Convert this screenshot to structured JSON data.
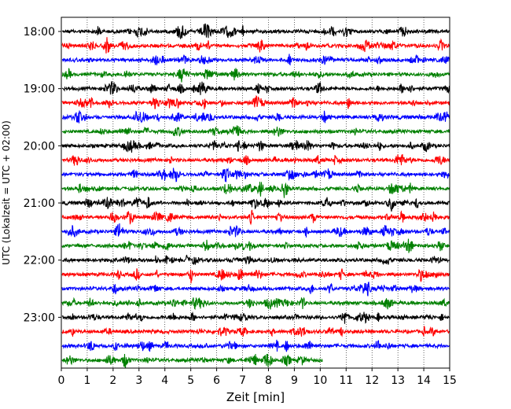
{
  "chart_data": {
    "type": "line",
    "subtype": "helicorder",
    "xlabel": "Zeit  [min]",
    "ylabel": "UTC (Lokalzeit = UTC + 02:00)",
    "x_ticks": [
      0,
      1,
      2,
      3,
      4,
      5,
      6,
      7,
      8,
      9,
      10,
      11,
      12,
      13,
      14,
      15
    ],
    "xlim": [
      0,
      15
    ],
    "y_tick_labels": [
      "18:00",
      "19:00",
      "20:00",
      "21:00",
      "22:00",
      "23:00"
    ],
    "trace_interval_min": 15,
    "start_utc": "18:00",
    "grid": "vertical dotted lines at each minute",
    "color_cycle": [
      "#000000",
      "#ff0000",
      "#0000ff",
      "#008000"
    ],
    "series": [
      {
        "start": "18:00",
        "end_min": 15
      },
      {
        "start": "18:15",
        "end_min": 15
      },
      {
        "start": "18:30",
        "end_min": 15
      },
      {
        "start": "18:45",
        "end_min": 15
      },
      {
        "start": "19:00",
        "end_min": 15
      },
      {
        "start": "19:15",
        "end_min": 15
      },
      {
        "start": "19:30",
        "end_min": 15
      },
      {
        "start": "19:45",
        "end_min": 15
      },
      {
        "start": "20:00",
        "end_min": 15
      },
      {
        "start": "20:15",
        "end_min": 15
      },
      {
        "start": "20:30",
        "end_min": 15
      },
      {
        "start": "20:45",
        "end_min": 15
      },
      {
        "start": "21:00",
        "end_min": 15
      },
      {
        "start": "21:15",
        "end_min": 15
      },
      {
        "start": "21:30",
        "end_min": 15
      },
      {
        "start": "21:45",
        "end_min": 15
      },
      {
        "start": "22:00",
        "end_min": 15
      },
      {
        "start": "22:15",
        "end_min": 15
      },
      {
        "start": "22:30",
        "end_min": 15
      },
      {
        "start": "22:45",
        "end_min": 15
      },
      {
        "start": "23:00",
        "end_min": 15
      },
      {
        "start": "23:15",
        "end_min": 15
      },
      {
        "start": "23:30",
        "end_min": 15
      },
      {
        "start": "23:45",
        "end_min": 10.1
      }
    ]
  }
}
